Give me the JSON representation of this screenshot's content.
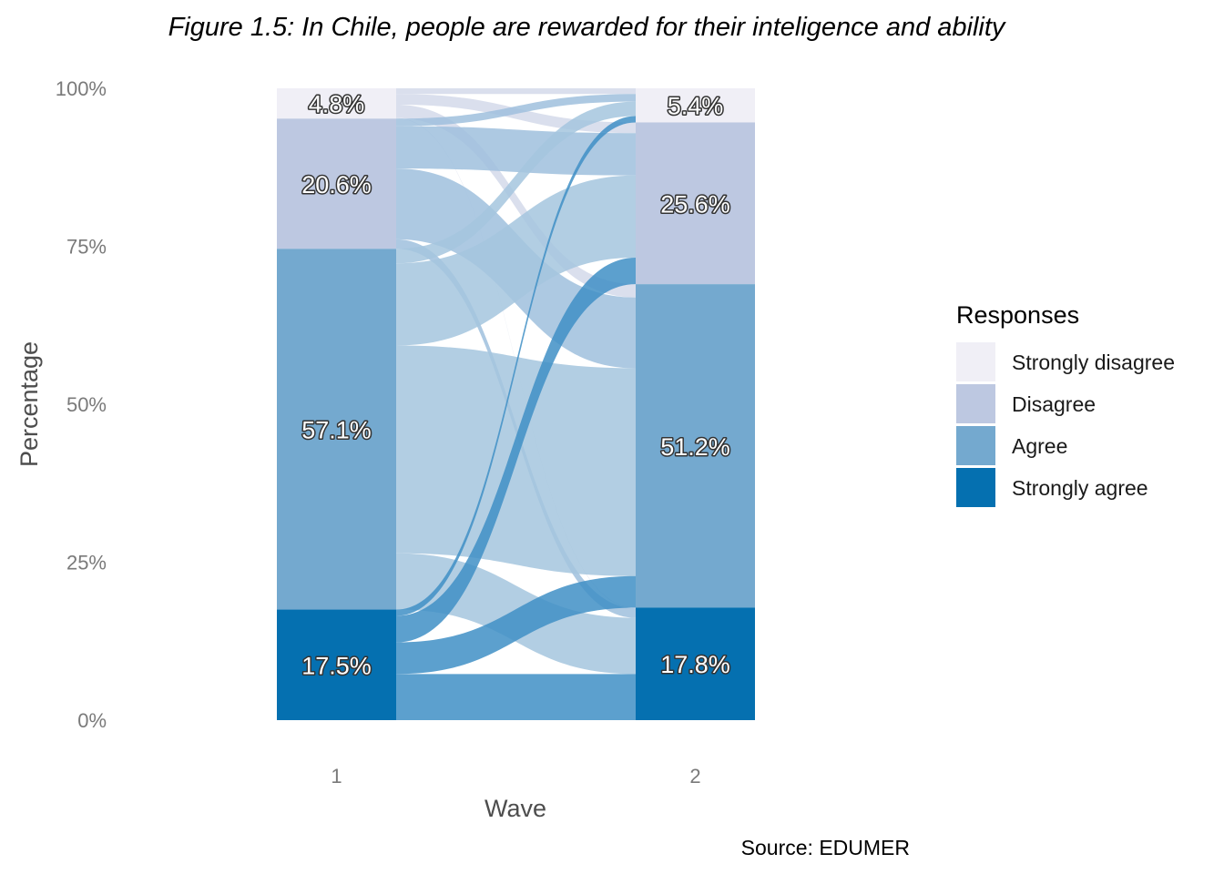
{
  "chart_data": {
    "type": "alluvial",
    "title": "Figure 1.5: In Chile, people are rewarded for their inteligence and ability",
    "xlabel": "Wave",
    "ylabel": "Percentage",
    "caption": "Source: EDUMER",
    "legend_title": "Responses",
    "legend_position": "right",
    "categories": [
      "Strongly disagree",
      "Disagree",
      "Agree",
      "Strongly agree"
    ],
    "colors": {
      "Strongly disagree": "#f0eff6",
      "Disagree": "#bdc8e1",
      "Agree": "#74a9cf",
      "Strongly agree": "#0570b0"
    },
    "waves": [
      "1",
      "2"
    ],
    "y_ticks": [
      "0%",
      "25%",
      "50%",
      "75%",
      "100%"
    ],
    "stacks": [
      {
        "wave": "1",
        "values": {
          "Strongly disagree": 4.8,
          "Disagree": 20.6,
          "Agree": 57.1,
          "Strongly agree": 17.5
        },
        "labels": {
          "Strongly disagree": "4.8%",
          "Disagree": "20.6%",
          "Agree": "57.1%",
          "Strongly agree": "17.5%"
        }
      },
      {
        "wave": "2",
        "values": {
          "Strongly disagree": 5.4,
          "Disagree": 25.6,
          "Agree": 51.2,
          "Strongly agree": 17.8
        },
        "labels": {
          "Strongly disagree": "5.4%",
          "Disagree": "25.6%",
          "Agree": "51.2%",
          "Strongly agree": "17.8%"
        }
      }
    ],
    "flows": [
      {
        "from": "Strongly disagree",
        "to": "Strongly disagree",
        "value": 0.9
      },
      {
        "from": "Strongly disagree",
        "to": "Disagree",
        "value": 1.7
      },
      {
        "from": "Strongly disagree",
        "to": "Agree",
        "value": 2.1
      },
      {
        "from": "Strongly disagree",
        "to": "Strongly agree",
        "value": 0.1
      },
      {
        "from": "Disagree",
        "to": "Strongly disagree",
        "value": 1.2
      },
      {
        "from": "Disagree",
        "to": "Disagree",
        "value": 6.7
      },
      {
        "from": "Disagree",
        "to": "Agree",
        "value": 11.2
      },
      {
        "from": "Disagree",
        "to": "Strongly agree",
        "value": 1.5
      },
      {
        "from": "Agree",
        "to": "Strongly disagree",
        "value": 2.3
      },
      {
        "from": "Agree",
        "to": "Disagree",
        "value": 13.0
      },
      {
        "from": "Agree",
        "to": "Agree",
        "value": 32.9
      },
      {
        "from": "Agree",
        "to": "Strongly agree",
        "value": 8.9
      },
      {
        "from": "Strongly agree",
        "to": "Strongly disagree",
        "value": 1.0
      },
      {
        "from": "Strongly agree",
        "to": "Disagree",
        "value": 4.2
      },
      {
        "from": "Strongly agree",
        "to": "Agree",
        "value": 5.0
      },
      {
        "from": "Strongly agree",
        "to": "Strongly agree",
        "value": 7.3
      }
    ]
  }
}
